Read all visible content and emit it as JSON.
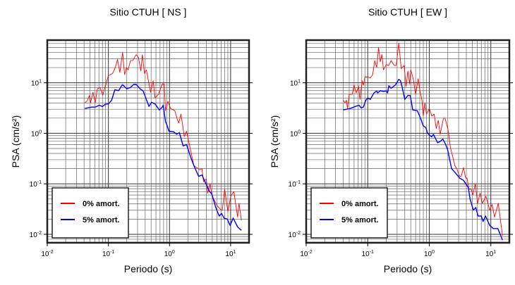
{
  "chart_data": [
    {
      "type": "line",
      "title": "Sitio CTUH [ NS ]",
      "xlabel": "Periodo (s)",
      "ylabel": "PSA (cm/s²)",
      "xscale": "log",
      "yscale": "log",
      "xlim": [
        0.01,
        20
      ],
      "ylim": [
        0.0068,
        70
      ],
      "xtick_exponents": [
        -2,
        -1,
        0,
        1
      ],
      "ytick_exponents": [
        -2,
        -1,
        0,
        1
      ],
      "grid": true,
      "legend_position": "bottom-left",
      "series": [
        {
          "name": "0% amort.",
          "color": "#ff0000",
          "points": [
            [
              0.041,
              4.0
            ],
            [
              0.045,
              4.4
            ],
            [
              0.049,
              5.6
            ],
            [
              0.051,
              4.0
            ],
            [
              0.056,
              6.5
            ],
            [
              0.061,
              4.0
            ],
            [
              0.066,
              7.6
            ],
            [
              0.073,
              8.1
            ],
            [
              0.081,
              5.7
            ],
            [
              0.087,
              7.8
            ],
            [
              0.1,
              13.8
            ],
            [
              0.117,
              15.3
            ],
            [
              0.128,
              19
            ],
            [
              0.141,
              29
            ],
            [
              0.154,
              16
            ],
            [
              0.171,
              40
            ],
            [
              0.184,
              14.5
            ],
            [
              0.198,
              20
            ],
            [
              0.21,
              18
            ],
            [
              0.23,
              27.5
            ],
            [
              0.25,
              27.5
            ],
            [
              0.285,
              36
            ],
            [
              0.31,
              32
            ],
            [
              0.34,
              17
            ],
            [
              0.36,
              36
            ],
            [
              0.39,
              15.3
            ],
            [
              0.42,
              18
            ],
            [
              0.44,
              13
            ],
            [
              0.49,
              6.5
            ],
            [
              0.54,
              11
            ],
            [
              0.58,
              5
            ],
            [
              0.66,
              5.9
            ],
            [
              0.76,
              9.5
            ],
            [
              0.82,
              9.5
            ],
            [
              0.86,
              2.8
            ],
            [
              0.94,
              4.3
            ],
            [
              1.04,
              3.1
            ],
            [
              1.22,
              2.8
            ],
            [
              1.34,
              1.9
            ],
            [
              1.42,
              1.6
            ],
            [
              1.54,
              2.4
            ],
            [
              1.75,
              0.86
            ],
            [
              1.9,
              1.1
            ],
            [
              2.2,
              0.48
            ],
            [
              2.5,
              0.23
            ],
            [
              3.1,
              0.19
            ],
            [
              3.4,
              0.2
            ],
            [
              3.6,
              0.11
            ],
            [
              4.0,
              0.125
            ],
            [
              4.2,
              0.065
            ],
            [
              4.6,
              0.1
            ],
            [
              5.0,
              0.057
            ],
            [
              6.0,
              0.037
            ],
            [
              7.0,
              0.03
            ],
            [
              7.3,
              0.03
            ],
            [
              8.0,
              0.078
            ],
            [
              9.0,
              0.028
            ],
            [
              10.1,
              0.058
            ],
            [
              11.3,
              0.07
            ],
            [
              13,
              0.022
            ],
            [
              13.7,
              0.041
            ],
            [
              15,
              0.019
            ]
          ]
        },
        {
          "name": "5% amort.",
          "color": "#0000ff",
          "points": [
            [
              0.041,
              3.1
            ],
            [
              0.053,
              3.3
            ],
            [
              0.061,
              3.3
            ],
            [
              0.071,
              3.6
            ],
            [
              0.08,
              3.4
            ],
            [
              0.09,
              3.8
            ],
            [
              0.1,
              3.8
            ],
            [
              0.113,
              4.5
            ],
            [
              0.128,
              7.3
            ],
            [
              0.147,
              7.0
            ],
            [
              0.17,
              9.2
            ],
            [
              0.2,
              7.6
            ],
            [
              0.23,
              8.1
            ],
            [
              0.26,
              9.3
            ],
            [
              0.285,
              9.3
            ],
            [
              0.33,
              7.6
            ],
            [
              0.37,
              6.9
            ],
            [
              0.41,
              5.0
            ],
            [
              0.46,
              3.4
            ],
            [
              0.51,
              4.1
            ],
            [
              0.58,
              3.8
            ],
            [
              0.68,
              2.9
            ],
            [
              0.76,
              3.3
            ],
            [
              0.79,
              3.6
            ],
            [
              0.86,
              1.7
            ],
            [
              0.9,
              1.5
            ],
            [
              0.98,
              1.1
            ],
            [
              1.17,
              1.07
            ],
            [
              1.3,
              0.96
            ],
            [
              1.45,
              1.03
            ],
            [
              1.67,
              0.56
            ],
            [
              1.9,
              0.6
            ],
            [
              2.2,
              0.35
            ],
            [
              2.5,
              0.23
            ],
            [
              3.0,
              0.14
            ],
            [
              3.4,
              0.15
            ],
            [
              4.0,
              0.097
            ],
            [
              4.5,
              0.071
            ],
            [
              4.9,
              0.063
            ],
            [
              5.7,
              0.034
            ],
            [
              6.5,
              0.023
            ],
            [
              7.1,
              0.026
            ],
            [
              7.8,
              0.021
            ],
            [
              8.8,
              0.02
            ],
            [
              9.8,
              0.015
            ],
            [
              11,
              0.021
            ],
            [
              13,
              0.014
            ],
            [
              15,
              0.012
            ]
          ]
        }
      ]
    },
    {
      "type": "line",
      "title": "Sitio CTUH [ EW ]",
      "xlabel": "Periodo (s)",
      "ylabel": "PSA (cm/s²)",
      "xscale": "log",
      "yscale": "log",
      "xlim": [
        0.01,
        20
      ],
      "ylim": [
        0.0068,
        70
      ],
      "xtick_exponents": [
        -2,
        -1,
        0,
        1
      ],
      "ytick_exponents": [
        -2,
        -1,
        0,
        1
      ],
      "grid": true,
      "legend_position": "bottom-left",
      "series": [
        {
          "name": "0% amort.",
          "color": "#ff0000",
          "points": [
            [
              0.04,
              4.5
            ],
            [
              0.043,
              4.0
            ],
            [
              0.045,
              4.5
            ],
            [
              0.047,
              3.1
            ],
            [
              0.05,
              5.9
            ],
            [
              0.056,
              5.9
            ],
            [
              0.06,
              9.0
            ],
            [
              0.065,
              6.3
            ],
            [
              0.071,
              8.5
            ],
            [
              0.075,
              4.7
            ],
            [
              0.081,
              11
            ],
            [
              0.085,
              9
            ],
            [
              0.09,
              13
            ],
            [
              0.1,
              13
            ],
            [
              0.11,
              12.5
            ],
            [
              0.12,
              14.5
            ],
            [
              0.13,
              27.5
            ],
            [
              0.14,
              20
            ],
            [
              0.15,
              50
            ],
            [
              0.16,
              26
            ],
            [
              0.17,
              36
            ],
            [
              0.18,
              18
            ],
            [
              0.2,
              23
            ],
            [
              0.22,
              22
            ],
            [
              0.24,
              27.5
            ],
            [
              0.27,
              22
            ],
            [
              0.29,
              22
            ],
            [
              0.32,
              61
            ],
            [
              0.35,
              19
            ],
            [
              0.39,
              22
            ],
            [
              0.42,
              8.5
            ],
            [
              0.45,
              17
            ],
            [
              0.48,
              9.5
            ],
            [
              0.5,
              18
            ],
            [
              0.55,
              12
            ],
            [
              0.6,
              5.9
            ],
            [
              0.66,
              12
            ],
            [
              0.7,
              7.3
            ],
            [
              0.76,
              4.5
            ],
            [
              0.8,
              2.2
            ],
            [
              0.85,
              4.0
            ],
            [
              0.9,
              2.4
            ],
            [
              1.0,
              3.1
            ],
            [
              1.1,
              2.2
            ],
            [
              1.2,
              2.4
            ],
            [
              1.3,
              1.24
            ],
            [
              1.4,
              1.8
            ],
            [
              1.5,
              0.95
            ],
            [
              1.7,
              2.0
            ],
            [
              1.8,
              2.0
            ],
            [
              2.0,
              1.24
            ],
            [
              2.2,
              0.53
            ],
            [
              2.6,
              0.23
            ],
            [
              2.8,
              0.2
            ],
            [
              3.1,
              0.14
            ],
            [
              3.3,
              0.14
            ],
            [
              3.6,
              0.21
            ],
            [
              3.9,
              0.13
            ],
            [
              4.1,
              0.13
            ],
            [
              4.4,
              0.078
            ],
            [
              4.8,
              0.078
            ],
            [
              5.1,
              0.06
            ],
            [
              5.6,
              0.1
            ],
            [
              6.1,
              0.041
            ],
            [
              6.7,
              0.066
            ],
            [
              7.3,
              0.041
            ],
            [
              8.3,
              0.057
            ],
            [
              9.6,
              0.03
            ],
            [
              10.5,
              0.039
            ],
            [
              11.5,
              0.022
            ],
            [
              13.2,
              0.041
            ],
            [
              15.5,
              0.0093
            ]
          ]
        },
        {
          "name": "5% amort.",
          "color": "#0000ff",
          "points": [
            [
              0.04,
              2.9
            ],
            [
              0.052,
              3.1
            ],
            [
              0.063,
              3.4
            ],
            [
              0.072,
              3.6
            ],
            [
              0.078,
              3.2
            ],
            [
              0.085,
              3.3
            ],
            [
              0.093,
              4.5
            ],
            [
              0.1,
              5.0
            ],
            [
              0.11,
              4.7
            ],
            [
              0.125,
              6.2
            ],
            [
              0.14,
              6.9
            ],
            [
              0.145,
              6.3
            ],
            [
              0.16,
              7.0
            ],
            [
              0.18,
              6.7
            ],
            [
              0.2,
              6.9
            ],
            [
              0.21,
              6.3
            ],
            [
              0.22,
              8.7
            ],
            [
              0.24,
              7.8
            ],
            [
              0.28,
              9.0
            ],
            [
              0.32,
              11.7
            ],
            [
              0.34,
              11.1
            ],
            [
              0.36,
              8.5
            ],
            [
              0.4,
              4.7
            ],
            [
              0.45,
              5.6
            ],
            [
              0.49,
              5.6
            ],
            [
              0.54,
              2.9
            ],
            [
              0.64,
              2.8
            ],
            [
              0.73,
              1.9
            ],
            [
              0.8,
              1.4
            ],
            [
              0.88,
              1.3
            ],
            [
              0.94,
              1.0
            ],
            [
              1.09,
              0.85
            ],
            [
              1.17,
              0.95
            ],
            [
              1.37,
              0.65
            ],
            [
              1.5,
              0.69
            ],
            [
              1.66,
              0.77
            ],
            [
              1.79,
              0.65
            ],
            [
              1.98,
              0.48
            ],
            [
              2.3,
              0.2
            ],
            [
              2.6,
              0.17
            ],
            [
              3.1,
              0.13
            ],
            [
              3.6,
              0.117
            ],
            [
              4.3,
              0.085
            ],
            [
              4.6,
              0.05
            ],
            [
              5.2,
              0.03
            ],
            [
              5.7,
              0.034
            ],
            [
              6.2,
              0.023
            ],
            [
              7.0,
              0.023
            ],
            [
              7.5,
              0.018
            ],
            [
              8.2,
              0.023
            ],
            [
              9.6,
              0.015
            ],
            [
              11,
              0.013
            ],
            [
              13,
              0.013
            ],
            [
              15.5,
              0.0077
            ]
          ]
        }
      ]
    }
  ]
}
